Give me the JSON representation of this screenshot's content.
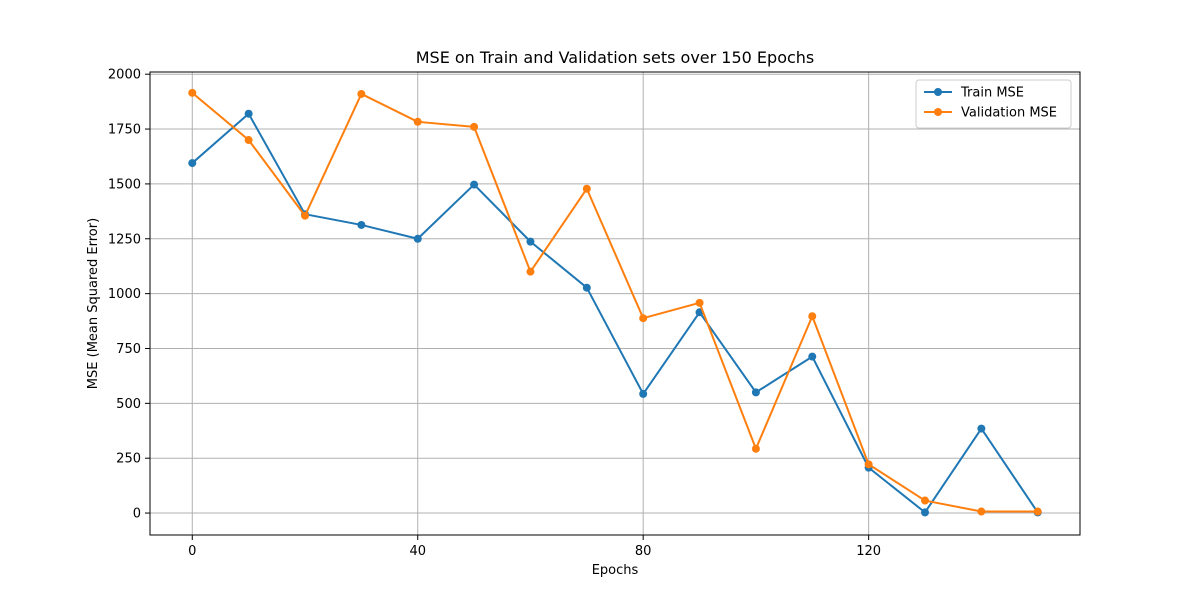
{
  "chart_data": {
    "type": "line",
    "title": "MSE on Train and Validation sets over 150 Epochs",
    "xlabel": "Epochs",
    "ylabel": "MSE (Mean Squared Error)",
    "x": [
      0,
      10,
      20,
      30,
      40,
      50,
      60,
      70,
      80,
      90,
      100,
      110,
      120,
      130,
      140,
      150
    ],
    "xlim": [
      -7.5,
      157.5
    ],
    "ylim": [
      -100,
      2010
    ],
    "xticks": [
      0,
      40,
      80,
      120
    ],
    "yticks": [
      0,
      250,
      500,
      750,
      1000,
      1250,
      1500,
      1750,
      2000
    ],
    "grid": true,
    "legend_position": "top-right",
    "series": [
      {
        "name": "Train MSE",
        "color": "#1f77b4",
        "values": [
          1595,
          1820,
          1362,
          1313,
          1250,
          1497,
          1237,
          1027,
          543,
          915,
          550,
          713,
          207,
          3,
          385,
          3
        ]
      },
      {
        "name": "Validation MSE",
        "color": "#ff7f0e",
        "values": [
          1915,
          1700,
          1355,
          1910,
          1783,
          1760,
          1100,
          1478,
          888,
          958,
          293,
          897,
          222,
          57,
          7,
          7
        ]
      }
    ]
  }
}
